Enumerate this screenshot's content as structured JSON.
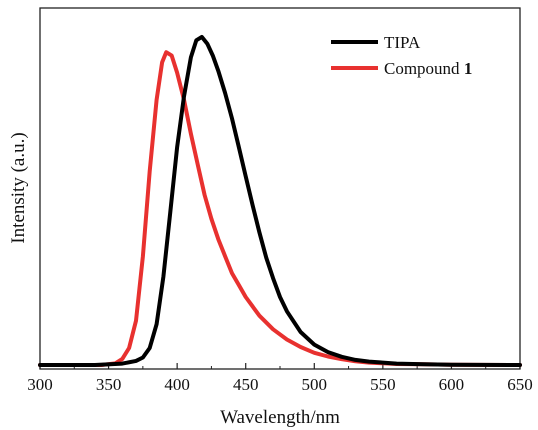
{
  "chart_data": {
    "type": "line",
    "title": "",
    "xlabel": "Wavelength/nm",
    "ylabel": "Intensity (a.u.)",
    "xlim": [
      300,
      650
    ],
    "ylim": [
      0,
      1.05
    ],
    "xticks": [
      "300",
      "350",
      "400",
      "450",
      "500",
      "550",
      "600",
      "650"
    ],
    "yticks_shown": false,
    "legend_position": "top-right",
    "series": [
      {
        "name": "TIPA",
        "color": "#000000",
        "x": [
          300,
          340,
          360,
          370,
          375,
          380,
          385,
          390,
          395,
          400,
          405,
          410,
          414,
          418,
          422,
          426,
          430,
          435,
          440,
          445,
          450,
          455,
          460,
          465,
          470,
          475,
          480,
          490,
          500,
          510,
          520,
          530,
          540,
          550,
          560,
          580,
          600,
          650
        ],
        "y": [
          0,
          0,
          0.004,
          0.012,
          0.022,
          0.05,
          0.12,
          0.26,
          0.45,
          0.64,
          0.79,
          0.905,
          0.955,
          0.965,
          0.945,
          0.91,
          0.865,
          0.8,
          0.725,
          0.64,
          0.555,
          0.47,
          0.39,
          0.315,
          0.255,
          0.2,
          0.158,
          0.097,
          0.06,
          0.038,
          0.024,
          0.015,
          0.01,
          0.007,
          0.004,
          0.002,
          0.001,
          0
        ]
      },
      {
        "name": "Compound 1",
        "bold_suffix": "1",
        "color": "#e8312f",
        "x": [
          300,
          345,
          355,
          360,
          365,
          370,
          375,
          380,
          385,
          389,
          392,
          396,
          400,
          405,
          410,
          415,
          420,
          425,
          430,
          435,
          440,
          445,
          450,
          460,
          470,
          480,
          490,
          500,
          510,
          520,
          530,
          540,
          550,
          560,
          580,
          600,
          650
        ],
        "y": [
          0,
          0,
          0.005,
          0.018,
          0.05,
          0.13,
          0.32,
          0.57,
          0.78,
          0.89,
          0.92,
          0.91,
          0.86,
          0.78,
          0.68,
          0.59,
          0.5,
          0.43,
          0.37,
          0.32,
          0.27,
          0.235,
          0.2,
          0.145,
          0.105,
          0.075,
          0.053,
          0.036,
          0.025,
          0.017,
          0.011,
          0.007,
          0.005,
          0.003,
          0.002,
          0.001,
          0
        ]
      }
    ]
  }
}
